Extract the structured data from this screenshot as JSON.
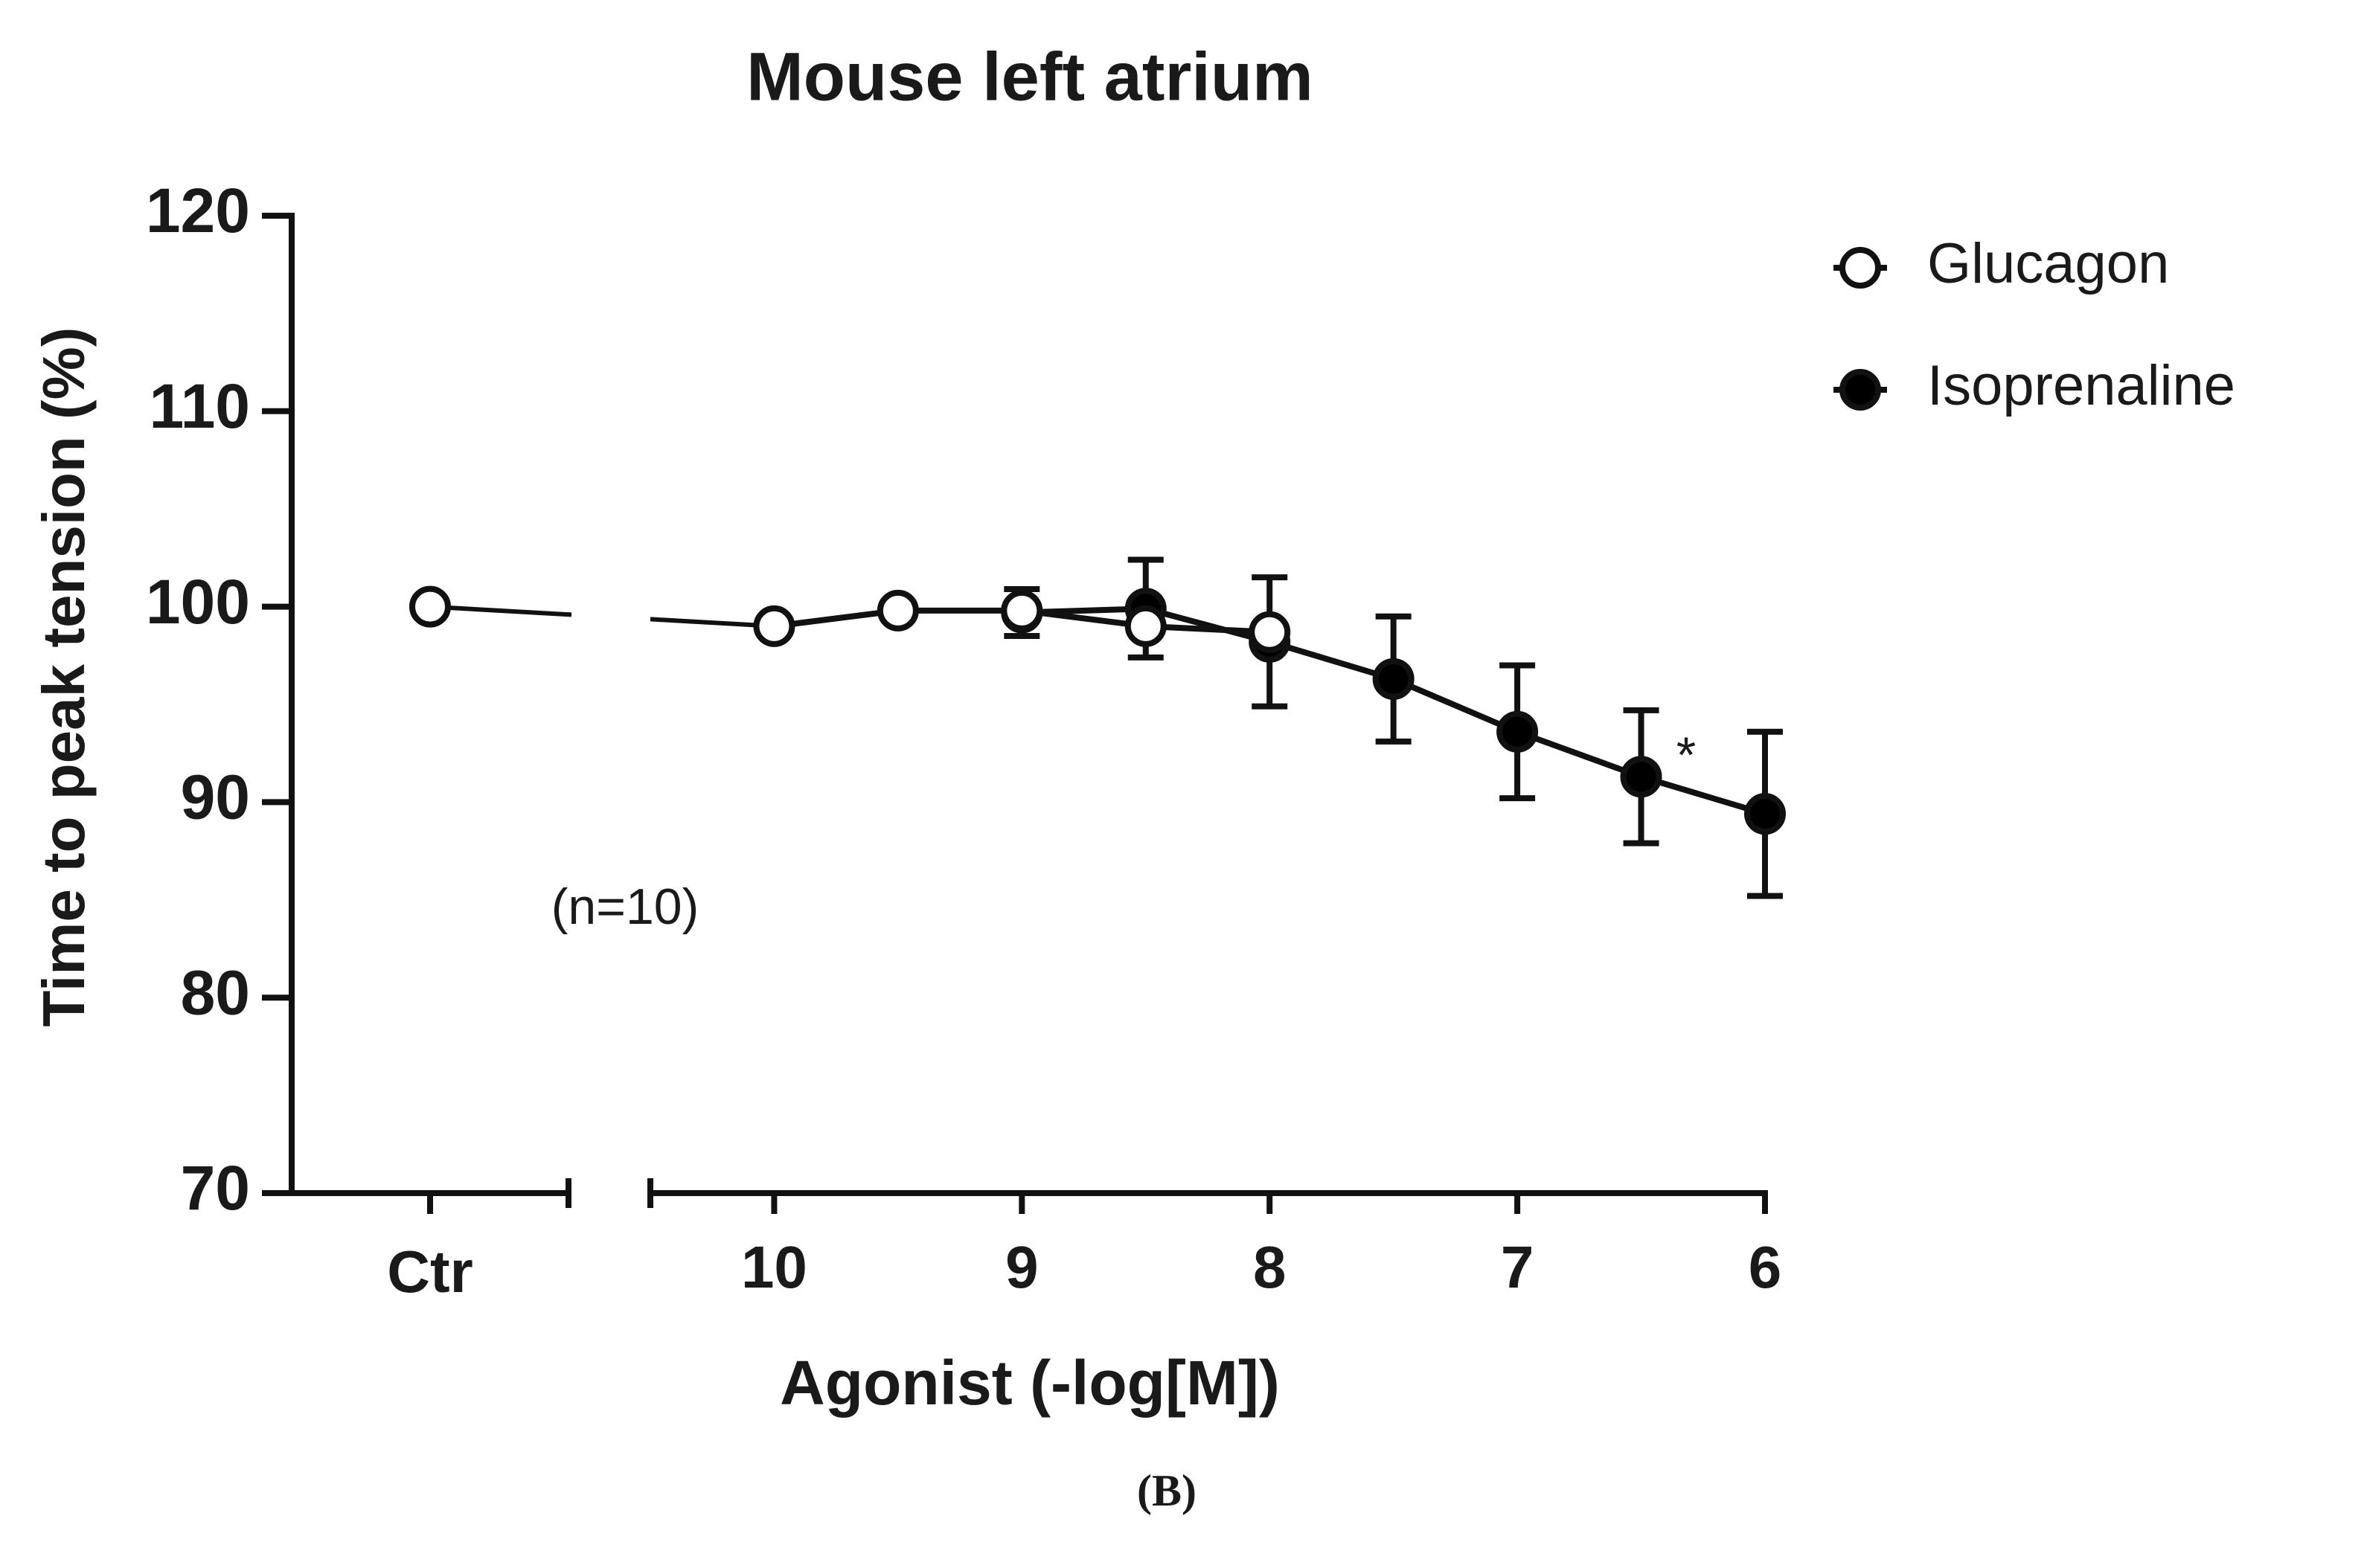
{
  "chart_data": {
    "type": "line",
    "title": "Mouse left atrium",
    "x_label": "Agonist (-log[M])",
    "y_label": "Time to peak tension (%)",
    "control_label": "Ctr",
    "x": [
      10,
      9.5,
      9,
      8.5,
      8,
      7.5,
      7,
      6.5,
      6
    ],
    "xlim": [
      10.5,
      6
    ],
    "xticks": [
      10,
      9,
      8,
      7,
      6
    ],
    "ylim": [
      70,
      120
    ],
    "yticks": [
      70,
      80,
      90,
      100,
      110,
      120
    ],
    "legend": "top-right",
    "series": [
      {
        "name": "Glucagon",
        "color": "#ffffff",
        "control_value": 100,
        "values": [
          99.0,
          99.8,
          99.8,
          99.0,
          98.7,
          null,
          null,
          null,
          null
        ]
      },
      {
        "name": "Isoprenaline",
        "color": "#000000",
        "values": [
          null,
          null,
          99.7,
          99.9,
          98.2,
          96.3,
          93.6,
          91.3,
          89.4
        ],
        "errors": [
          null,
          null,
          1.2,
          2.5,
          3.3,
          3.2,
          3.4,
          3.4,
          4.2
        ]
      }
    ],
    "annotations": [
      "(n=10)",
      "*"
    ],
    "caption": "(B)"
  }
}
